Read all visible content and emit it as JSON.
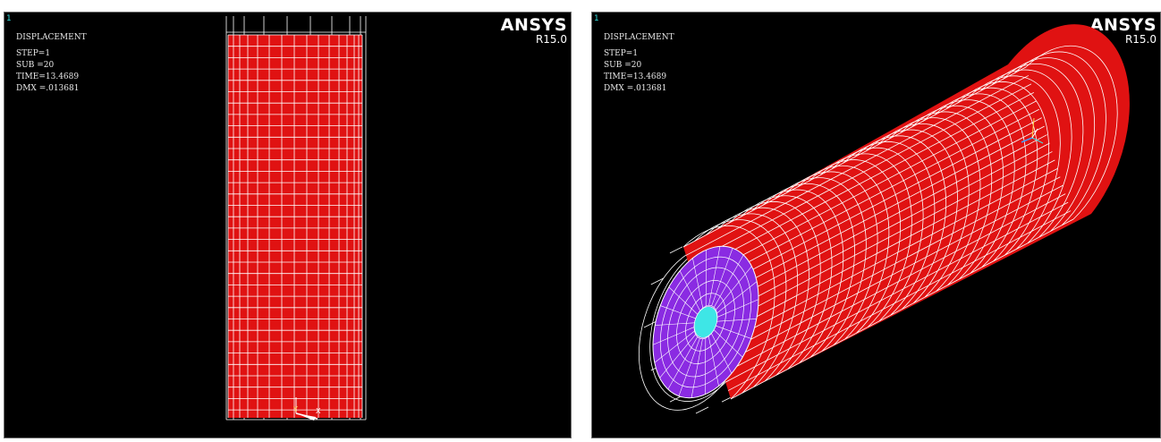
{
  "left_viewport": {
    "window_number": "1",
    "result_title": "DISPLACEMENT",
    "step": "STEP=1",
    "substep": "SUB =20",
    "time": "TIME=13.4689",
    "dmx": "DMX =.013681",
    "logo": "ANSYS",
    "version": "R15.0",
    "triad_labels": {
      "y": "Y",
      "x": "X"
    }
  },
  "right_viewport": {
    "window_number": "1",
    "result_title": "DISPLACEMENT",
    "step": "STEP=1",
    "substep": "SUB =20",
    "time": "TIME=13.4689",
    "dmx": "DMX =.013681",
    "logo": "ANSYS",
    "version": "R15.0"
  },
  "colors": {
    "background": "#000000",
    "mesh_body": "#e01212",
    "mesh_lines": "#ffffff",
    "end_face": "#8a2be2",
    "inner_bore": "#3ee6e6",
    "undeformed_outline": "#ffffff",
    "text": "#e8e8e8",
    "window_number": "#35e3e3"
  }
}
